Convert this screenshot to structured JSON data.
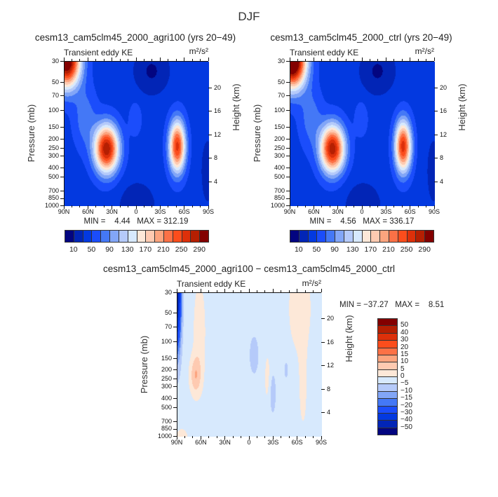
{
  "figure_title": "DJF",
  "diff_title": "cesm13_cam5clm45_2000_agri100 − cesm13_cam5clm45_2000_ctrl",
  "chart_data": [
    {
      "type": "heatmap",
      "subtype": "filled-contour",
      "title": "cesm13_cam5clm45_2000_agri100 (yrs 20−49)",
      "left_string": "Transient eddy KE",
      "units": "m²/s²",
      "ylabel": "Pressure (mb)",
      "y2label": "Height (km)",
      "xticks": [
        {
          "value": 90,
          "label": "90N"
        },
        {
          "value": 60,
          "label": "60N"
        },
        {
          "value": 30,
          "label": "30N"
        },
        {
          "value": 0,
          "label": "0"
        },
        {
          "value": -30,
          "label": "30S"
        },
        {
          "value": -60,
          "label": "60S"
        },
        {
          "value": -90,
          "label": "90S"
        }
      ],
      "yticks": [
        30,
        50,
        70,
        100,
        150,
        200,
        250,
        300,
        400,
        500,
        700,
        850,
        1000
      ],
      "y2ticks": [
        4,
        8,
        12,
        16,
        20
      ],
      "ylim_pressure": [
        1000,
        30
      ],
      "minmax": "MIN =    4.44   MAX = 312.19",
      "levels": [
        10,
        30,
        50,
        70,
        90,
        110,
        130,
        150,
        170,
        190,
        210,
        230,
        250,
        270,
        290
      ],
      "colorbar_labels": [
        "10",
        "50",
        "90",
        "130",
        "170",
        "210",
        "250",
        "290"
      ],
      "colorbar_orientation": "horizontal",
      "base": 42,
      "features": [
        {
          "name": "nh-jet",
          "lat": 38,
          "height_km": 9.8,
          "value": 245,
          "lat_width": 15,
          "z_width": 4
        },
        {
          "name": "sh-jet",
          "lat": -50,
          "height_km": 10.2,
          "value": 215,
          "lat_width": 10,
          "z_width": 4.3
        },
        {
          "name": "nh-polar-stratosphere",
          "lat": 88,
          "height_km": 24.8,
          "value": 290,
          "lat_width": 17,
          "z_width": 4.5
        },
        {
          "name": "nh-ridge",
          "lat": 65,
          "height_km": 15,
          "value": 40,
          "lat_width": 14,
          "z_width": 5
        },
        {
          "name": "tropical-stratosphere-min",
          "lat": -18,
          "height_km": 23,
          "value": -35,
          "lat_width": 22,
          "z_width": 4
        },
        {
          "name": "tropical-surface-min",
          "lat": 0,
          "height_km": 0,
          "value": -32,
          "lat_width": 22,
          "z_width": 4
        },
        {
          "name": "tropical-100mb",
          "lat": 2,
          "height_km": 15,
          "value": 22,
          "lat_width": 8,
          "z_width": 3
        },
        {
          "name": "sh-polar-min",
          "lat": -88,
          "height_km": 6,
          "value": -18,
          "lat_width": 12,
          "z_width": 8
        }
      ]
    },
    {
      "type": "heatmap",
      "subtype": "filled-contour",
      "title": "cesm13_cam5clm45_2000_ctrl (yrs 20−49)",
      "left_string": "Transient eddy KE",
      "units": "m²/s²",
      "ylabel": "Pressure (mb)",
      "y2label": "Height (km)",
      "xticks": [
        {
          "value": 90,
          "label": "90N"
        },
        {
          "value": 60,
          "label": "60N"
        },
        {
          "value": 30,
          "label": "30N"
        },
        {
          "value": 0,
          "label": "0"
        },
        {
          "value": -30,
          "label": "30S"
        },
        {
          "value": -60,
          "label": "60S"
        },
        {
          "value": -90,
          "label": "90S"
        }
      ],
      "yticks": [
        30,
        50,
        70,
        100,
        150,
        200,
        250,
        300,
        400,
        500,
        700,
        850,
        1000
      ],
      "y2ticks": [
        4,
        8,
        12,
        16,
        20
      ],
      "ylim_pressure": [
        1000,
        30
      ],
      "minmax": "MIN =    4.56   MAX = 336.17",
      "levels": [
        10,
        30,
        50,
        70,
        90,
        110,
        130,
        150,
        170,
        190,
        210,
        230,
        250,
        270,
        290
      ],
      "colorbar_labels": [
        "10",
        "50",
        "90",
        "130",
        "170",
        "210",
        "250",
        "290"
      ],
      "colorbar_orientation": "horizontal",
      "base": 42,
      "features": [
        {
          "name": "nh-jet",
          "lat": 38,
          "height_km": 9.8,
          "value": 242,
          "lat_width": 15,
          "z_width": 4
        },
        {
          "name": "sh-jet",
          "lat": -50,
          "height_km": 10.2,
          "value": 218,
          "lat_width": 10,
          "z_width": 4.3
        },
        {
          "name": "nh-polar-stratosphere",
          "lat": 88,
          "height_km": 24.8,
          "value": 320,
          "lat_width": 17,
          "z_width": 4.6
        },
        {
          "name": "nh-ridge",
          "lat": 65,
          "height_km": 15,
          "value": 38,
          "lat_width": 14,
          "z_width": 5
        },
        {
          "name": "tropical-stratosphere-min",
          "lat": -18,
          "height_km": 23,
          "value": -35,
          "lat_width": 22,
          "z_width": 4
        },
        {
          "name": "tropical-surface-min",
          "lat": 0,
          "height_km": 0,
          "value": -32,
          "lat_width": 22,
          "z_width": 4
        },
        {
          "name": "tropical-100mb",
          "lat": 2,
          "height_km": 15,
          "value": 24,
          "lat_width": 8,
          "z_width": 3
        },
        {
          "name": "sh-polar-min",
          "lat": -88,
          "height_km": 6,
          "value": -18,
          "lat_width": 12,
          "z_width": 8
        }
      ]
    },
    {
      "type": "heatmap",
      "subtype": "filled-contour",
      "title": "",
      "left_string": "Transient eddy KE",
      "units": "m²/s²",
      "ylabel": "Pressure (mb)",
      "y2label": "Height (km)",
      "xticks": [
        {
          "value": 90,
          "label": "90N"
        },
        {
          "value": 60,
          "label": "60N"
        },
        {
          "value": 30,
          "label": "30N"
        },
        {
          "value": 0,
          "label": "0"
        },
        {
          "value": -30,
          "label": "30S"
        },
        {
          "value": -60,
          "label": "60S"
        },
        {
          "value": -90,
          "label": "90S"
        }
      ],
      "yticks": [
        30,
        50,
        70,
        100,
        150,
        200,
        250,
        300,
        400,
        500,
        700,
        850,
        1000
      ],
      "y2ticks": [
        4,
        8,
        12,
        16,
        20
      ],
      "ylim_pressure": [
        1000,
        30
      ],
      "minmax": "MIN = −37.27   MAX =    8.51",
      "levels": [
        -50,
        -40,
        -30,
        -20,
        -15,
        -10,
        -5,
        0,
        5,
        10,
        15,
        20,
        30,
        40,
        50
      ],
      "colorbar_labels": [
        "−50",
        "−40",
        "−30",
        "−20",
        "−15",
        "−10",
        "−5",
        "0",
        "5",
        "10",
        "15",
        "20",
        "30",
        "40",
        "50"
      ],
      "colorbar_orientation": "vertical",
      "base": -2.5,
      "features": [
        {
          "name": "nh-pole-stratosphere",
          "lat": 91,
          "height_km": 24.5,
          "value": -48,
          "lat_width": 5,
          "z_width": 9
        },
        {
          "name": "nh-column-core",
          "lat": 68,
          "height_km": 10.5,
          "value": 11,
          "lat_width": 7,
          "z_width": 3.2
        },
        {
          "name": "nh-column",
          "lat": 63,
          "height_km": 18,
          "value": 5.5,
          "lat_width": 8,
          "z_width": 9
        },
        {
          "name": "nh-surface",
          "lat": 85,
          "height_km": 0,
          "value": 4,
          "lat_width": 10,
          "z_width": 2
        },
        {
          "name": "sh-stratosphere",
          "lat": -62,
          "height_km": 22,
          "value": 5.5,
          "lat_width": 15,
          "z_width": 8
        },
        {
          "name": "sh-column",
          "lat": -66,
          "height_km": 8,
          "value": 3.8,
          "lat_width": 6,
          "z_width": 8
        },
        {
          "name": "tropical-upper-neg",
          "lat": -5,
          "height_km": 14,
          "value": -5.5,
          "lat_width": 6,
          "z_width": 3.5
        },
        {
          "name": "nh-subtropical-neg",
          "lat": -28,
          "height_km": 7.5,
          "value": -5.3,
          "lat_width": 4.5,
          "z_width": 4
        },
        {
          "name": "sh-subtropical-pos",
          "lat": -22,
          "height_km": 10,
          "value": 4.2,
          "lat_width": 4.5,
          "z_width": 5
        },
        {
          "name": "sh-midlat-neg",
          "lat": -45,
          "height_km": 11.5,
          "value": -5.5,
          "lat_width": 2.5,
          "z_width": 1.5
        }
      ]
    }
  ],
  "colors": [
    "#030580",
    "#0225b6",
    "#0339e0",
    "#1b4dfb",
    "#4478f6",
    "#82a6f7",
    "#b5cafa",
    "#d7e9fd",
    "#fde8d8",
    "#fecab1",
    "#fca47e",
    "#fc7146",
    "#fb4d1c",
    "#dd300a",
    "#b51f02",
    "#830000"
  ]
}
